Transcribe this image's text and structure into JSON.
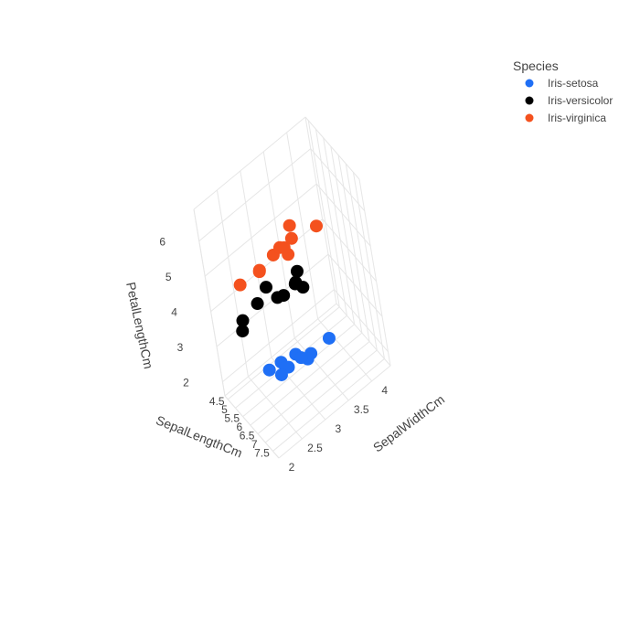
{
  "chart_data": {
    "type": "scatter3d",
    "axes": {
      "x": {
        "label": "SepalLengthCm",
        "ticks": [
          "4.5",
          "5",
          "5.5",
          "6",
          "6.5",
          "7",
          "7.5"
        ],
        "tick_values": [
          4.5,
          5,
          5.5,
          6,
          6.5,
          7,
          7.5
        ],
        "range": [
          4.3,
          7.9
        ]
      },
      "y": {
        "label": "SepalWidthCm",
        "ticks": [
          "2",
          "2.5",
          "3",
          "3.5",
          "4"
        ],
        "tick_values": [
          2,
          2.5,
          3,
          3.5,
          4
        ],
        "range": [
          2.0,
          4.4
        ]
      },
      "z": {
        "label": "PetalLengthCm",
        "ticks": [
          "2",
          "3",
          "4",
          "5",
          "6"
        ],
        "tick_values": [
          2,
          3,
          4,
          5,
          6
        ],
        "range": [
          1.6,
          6.9
        ]
      }
    },
    "grid": true,
    "legend": {
      "title": "Species",
      "placement": "top-right"
    },
    "series": [
      {
        "name": "Iris-setosa",
        "color": "#1f6ff5",
        "points": [
          {
            "x": 5.1,
            "y": 3.5,
            "z": 1.4
          },
          {
            "x": 4.9,
            "y": 3.0,
            "z": 1.4
          },
          {
            "x": 4.7,
            "y": 3.2,
            "z": 1.3
          },
          {
            "x": 4.6,
            "y": 3.1,
            "z": 1.5
          },
          {
            "x": 5.0,
            "y": 3.6,
            "z": 1.4
          },
          {
            "x": 5.4,
            "y": 3.9,
            "z": 1.7
          },
          {
            "x": 4.6,
            "y": 3.4,
            "z": 1.4
          },
          {
            "x": 5.0,
            "y": 3.4,
            "z": 1.5
          },
          {
            "x": 4.4,
            "y": 2.9,
            "z": 1.4
          },
          {
            "x": 4.9,
            "y": 3.1,
            "z": 1.5
          }
        ]
      },
      {
        "name": "Iris-versicolor",
        "color": "#000000",
        "points": [
          {
            "x": 7.0,
            "y": 3.2,
            "z": 4.7
          },
          {
            "x": 6.4,
            "y": 3.2,
            "z": 4.5
          },
          {
            "x": 6.9,
            "y": 3.1,
            "z": 4.9
          },
          {
            "x": 5.5,
            "y": 2.3,
            "z": 4.0
          },
          {
            "x": 6.5,
            "y": 2.8,
            "z": 4.6
          },
          {
            "x": 5.7,
            "y": 2.8,
            "z": 4.5
          },
          {
            "x": 6.3,
            "y": 3.3,
            "z": 4.7
          },
          {
            "x": 4.9,
            "y": 2.4,
            "z": 3.3
          },
          {
            "x": 6.6,
            "y": 2.9,
            "z": 4.6
          },
          {
            "x": 5.2,
            "y": 2.7,
            "z": 3.9
          }
        ]
      },
      {
        "name": "Iris-virginica",
        "color": "#f4511e",
        "points": [
          {
            "x": 6.3,
            "y": 3.3,
            "z": 6.0
          },
          {
            "x": 5.8,
            "y": 2.7,
            "z": 5.1
          },
          {
            "x": 7.1,
            "y": 3.0,
            "z": 5.9
          },
          {
            "x": 6.3,
            "y": 2.9,
            "z": 5.6
          },
          {
            "x": 6.5,
            "y": 3.0,
            "z": 5.8
          },
          {
            "x": 7.6,
            "y": 3.0,
            "z": 6.6
          },
          {
            "x": 4.9,
            "y": 2.5,
            "z": 4.5
          },
          {
            "x": 7.3,
            "y": 2.9,
            "z": 6.3
          },
          {
            "x": 6.7,
            "y": 2.5,
            "z": 5.8
          },
          {
            "x": 7.2,
            "y": 3.6,
            "z": 6.1
          }
        ]
      }
    ]
  }
}
